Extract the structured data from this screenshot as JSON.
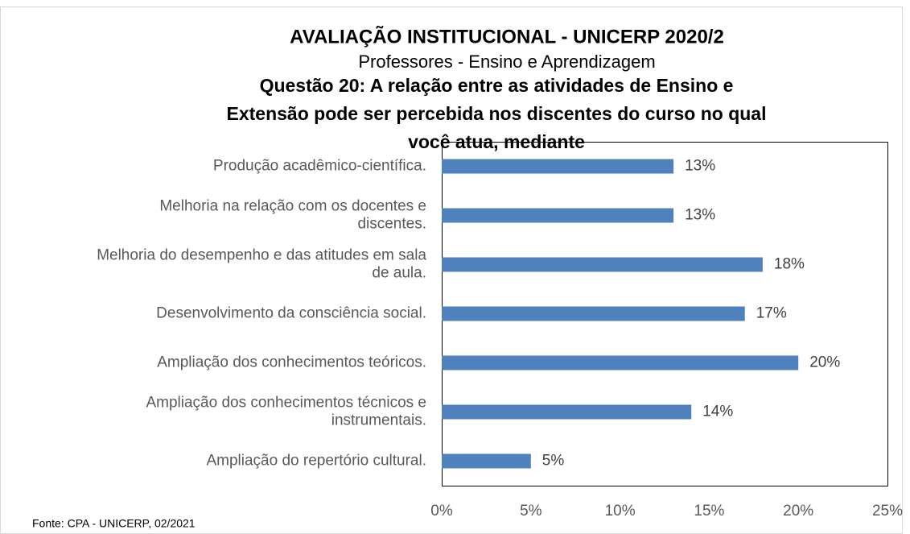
{
  "chart_data": {
    "type": "bar",
    "orientation": "horizontal",
    "title": "AVALIAÇÃO INSTITUCIONAL - UNICERP 2020/2",
    "subtitle": "Professores - Ensino e Aprendizagem",
    "question": "Questão 20: A relação entre as atividades de Ensino e\nExtensão pode ser percebida nos discentes do curso no qual\nvocê atua, mediante",
    "categories": [
      "Produção acadêmico-científica.",
      "Melhoria na relação com os docentes e\ndiscentes.",
      "Melhoria do desempenho e das atitudes em sala\nde aula.",
      "Desenvolvimento da consciência social.",
      "Ampliação dos conhecimentos teóricos.",
      "Ampliação dos conhecimentos técnicos e\ninstrumentais.",
      "Ampliação do repertório cultural."
    ],
    "values": [
      13,
      13,
      18,
      17,
      20,
      14,
      5
    ],
    "value_labels": [
      "13%",
      "13%",
      "18%",
      "17%",
      "20%",
      "14%",
      "5%"
    ],
    "color": "#4f81bd",
    "xlim": [
      0,
      25
    ],
    "xticks": [
      {
        "value": 0,
        "label": "0%"
      },
      {
        "value": 5,
        "label": "5%"
      },
      {
        "value": 10,
        "label": "10%"
      },
      {
        "value": 15,
        "label": "15%"
      },
      {
        "value": 20,
        "label": "20%"
      },
      {
        "value": 25,
        "label": "25%"
      }
    ],
    "source": "Fonte: CPA - UNICERP, 02/2021"
  }
}
